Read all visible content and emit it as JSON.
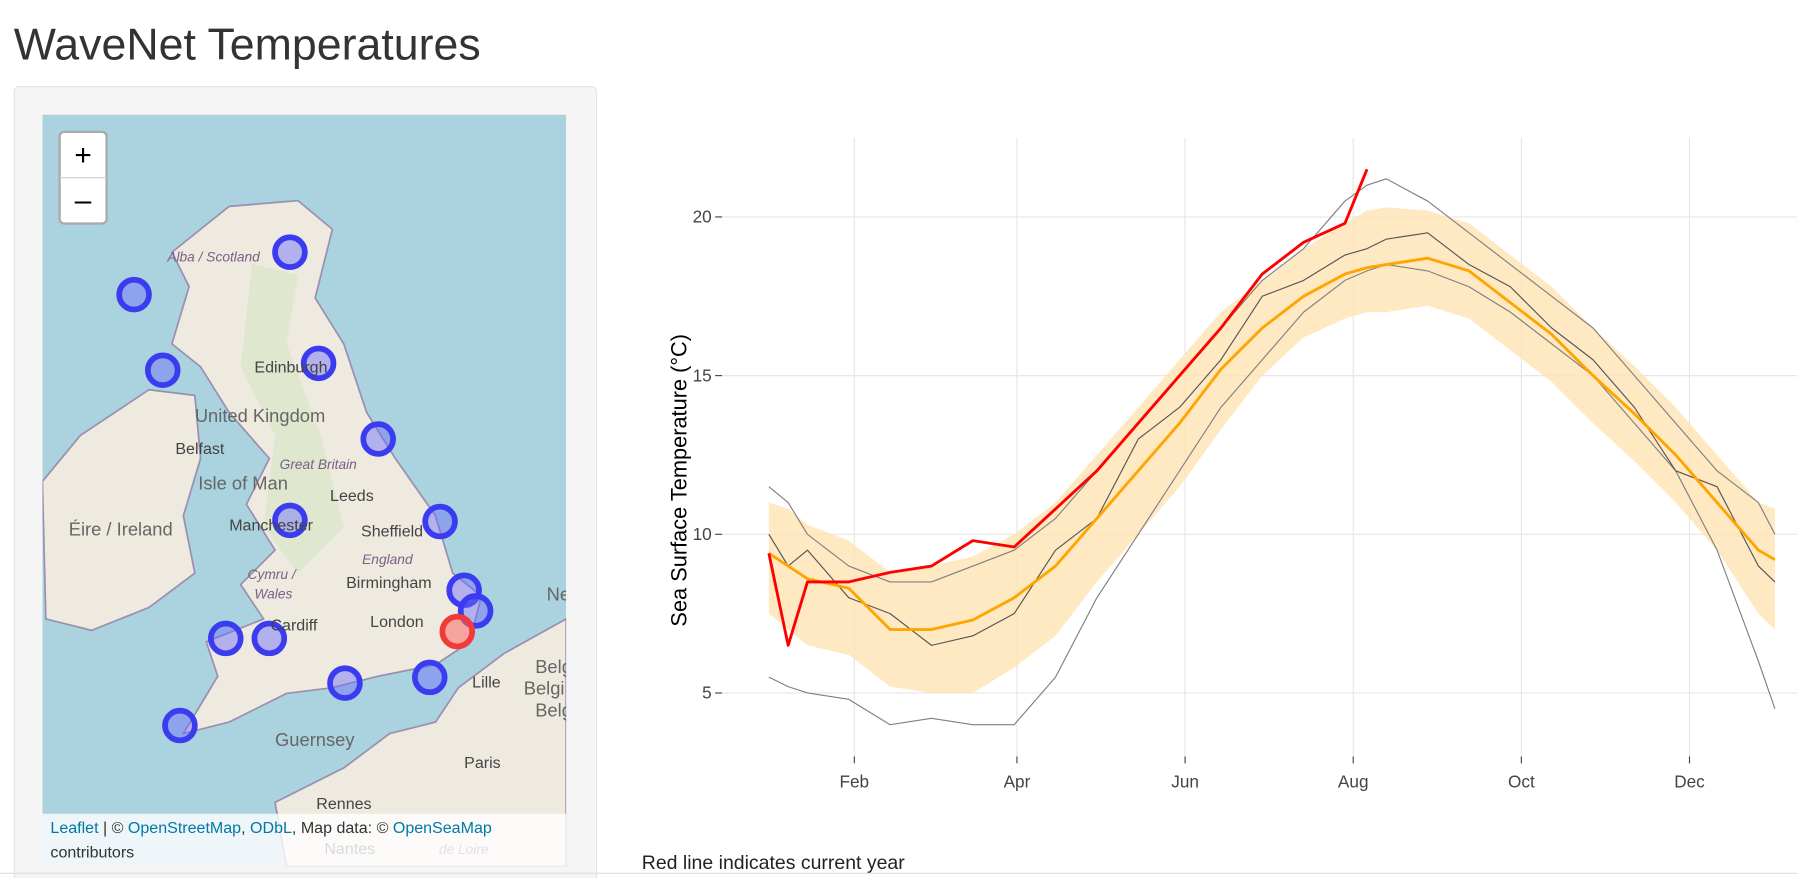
{
  "header": {
    "title": "WaveNet Temperatures"
  },
  "map": {
    "zoom_in": "+",
    "zoom_out": "–",
    "labels": [
      "Alba / Scotland",
      "Edinburgh",
      "United Kingdom",
      "Belfast",
      "Great Britain",
      "Isle of Man",
      "Leeds",
      "Éire / Ireland",
      "Manchester",
      "Sheffield",
      "England",
      "Cymru /",
      "Wales",
      "Birmingham",
      "Cardiff",
      "London",
      "Lille",
      "Guernsey",
      "Paris",
      "Rennes",
      "Nantes",
      "de Loire",
      "Belg",
      "Belgi",
      "Belg",
      "Ne"
    ],
    "attribution": {
      "leaflet": "Leaflet",
      "sep1": " | © ",
      "osm": "OpenStreetMap",
      "sep2": ", ",
      "odbl": "ODbL",
      "sep3": ", Map data: © ",
      "osea": "OpenSeaMap",
      "tail": "contributors"
    }
  },
  "chart_data": {
    "type": "line",
    "y_label": "Sea Surface Temperature (°C)",
    "caption": "Red line indicates current year",
    "x": [
      1,
      8,
      15,
      30,
      45,
      60,
      75,
      90,
      105,
      120,
      135,
      150,
      165,
      180,
      195,
      210,
      218,
      225,
      240,
      255,
      270,
      285,
      300,
      315,
      330,
      345,
      360,
      366
    ],
    "xlim": [
      -16,
      374
    ],
    "xticks": [
      {
        "value": 32,
        "label": "Feb"
      },
      {
        "value": 91,
        "label": "Apr"
      },
      {
        "value": 152,
        "label": "Jun"
      },
      {
        "value": 213,
        "label": "Aug"
      },
      {
        "value": 274,
        "label": "Oct"
      },
      {
        "value": 335,
        "label": "Dec"
      }
    ],
    "ylim": [
      3,
      22.5
    ],
    "yticks": [
      5,
      10,
      15,
      20
    ],
    "grid": true,
    "band": {
      "color": "#ffe4b3",
      "upper": [
        11,
        10.8,
        10.3,
        9.8,
        8.8,
        9,
        9.3,
        10,
        11,
        12.5,
        14,
        15.5,
        17,
        18,
        19,
        19.8,
        20.2,
        20.3,
        20.2,
        19.8,
        18.8,
        17.8,
        16.5,
        15.3,
        14,
        12.5,
        11,
        10.8
      ],
      "lower": [
        7.5,
        7,
        6.5,
        6.2,
        5.2,
        5,
        5,
        5.8,
        6.8,
        8.5,
        10,
        11.5,
        13.3,
        15,
        16.2,
        16.8,
        17,
        17,
        17.2,
        16.8,
        15.8,
        14.8,
        13.5,
        12.3,
        11,
        9.5,
        7.5,
        7
      ]
    },
    "series": [
      {
        "color": "#808080",
        "values": [
          5.5,
          5.2,
          5.0,
          4.8,
          4.0,
          4.2,
          4.0,
          4.0,
          5.5,
          8,
          10,
          12,
          14,
          15.5,
          17,
          18,
          18.3,
          18.5,
          18.3,
          17.8,
          17,
          16,
          15,
          13.5,
          12,
          9.5,
          6,
          4.5
        ]
      },
      {
        "color": "#808080",
        "values": [
          11.5,
          11,
          10,
          9,
          8.5,
          8.5,
          9,
          9.5,
          10.5,
          12,
          13.5,
          15,
          16.5,
          18,
          19,
          20.5,
          21,
          21.2,
          20.5,
          19.5,
          18.5,
          17.5,
          16.5,
          15,
          13.5,
          12,
          11,
          10
        ]
      },
      {
        "color": "#555555",
        "values": [
          10,
          9,
          9.5,
          8,
          7.5,
          6.5,
          6.8,
          7.5,
          9.5,
          10.5,
          13,
          14,
          15.5,
          17.5,
          18,
          18.8,
          19,
          19.3,
          19.5,
          18.5,
          17.8,
          16.5,
          15.5,
          14,
          12,
          11.5,
          9,
          8.5
        ]
      },
      {
        "color": "#ffa500",
        "values": [
          9.4,
          9.0,
          8.6,
          8.3,
          7.0,
          7.0,
          7.3,
          8.0,
          9.0,
          10.5,
          12.0,
          13.5,
          15.2,
          16.5,
          17.5,
          18.2,
          18.4,
          18.5,
          18.7,
          18.3,
          17.3,
          16.3,
          15.0,
          13.8,
          12.5,
          11.0,
          9.5,
          9.2
        ]
      },
      {
        "color": "#ff0000",
        "values": [
          9.4,
          6.5,
          8.5,
          8.5,
          8.8,
          9.0,
          9.8,
          9.6,
          10.8,
          12.0,
          13.5,
          15.0,
          16.5,
          18.2,
          19.2,
          19.8,
          21.5,
          null,
          null,
          null,
          null,
          null,
          null,
          null,
          null,
          null,
          null,
          null
        ]
      }
    ]
  }
}
